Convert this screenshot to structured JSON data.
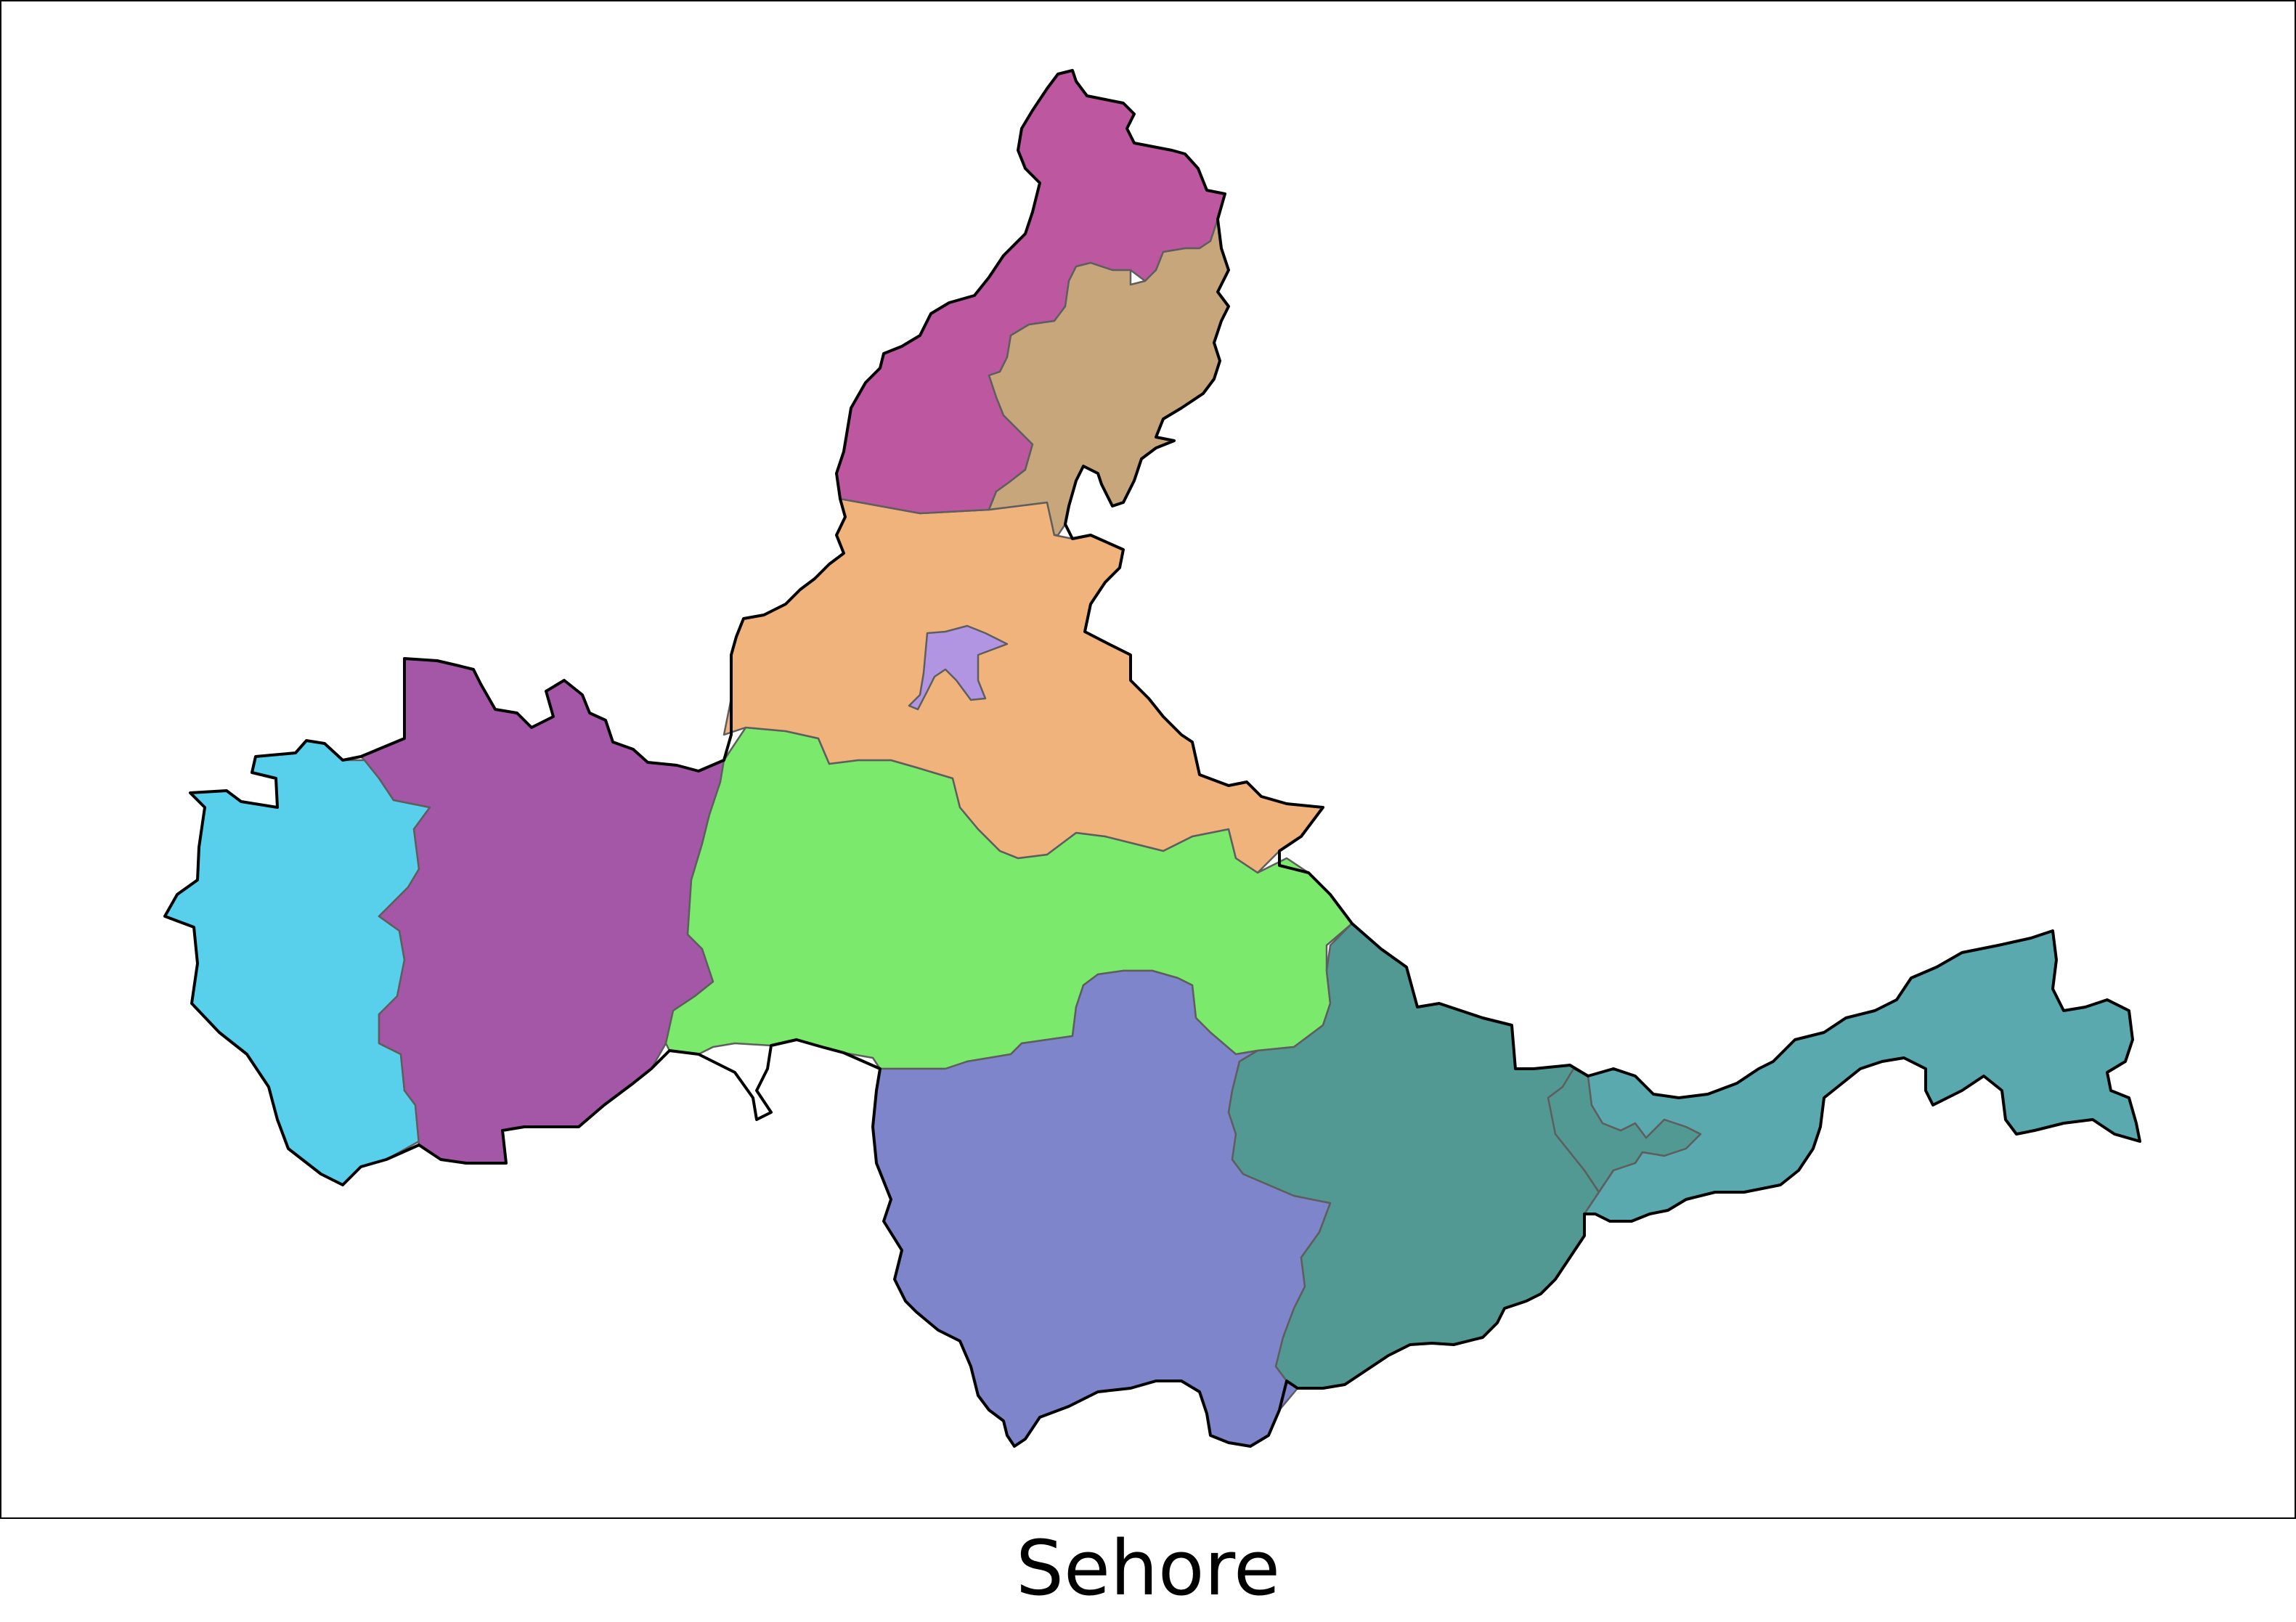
{
  "map": {
    "title": "Sehore",
    "colors": {
      "north_magenta": "#bd58a0",
      "north_tan": "#c8a67b",
      "central_orange": "#efb37b",
      "central_green": "#7be96b",
      "west_blue": "#58cfeb",
      "west_purple": "#a557a7",
      "south_blue_violet": "#7f85cb",
      "south_east_teal": "#529893",
      "east_teal": "#5aa9ae",
      "small_lilac": "#b194e2",
      "border": "#000000",
      "internal_border": "#5e5e5e"
    }
  }
}
